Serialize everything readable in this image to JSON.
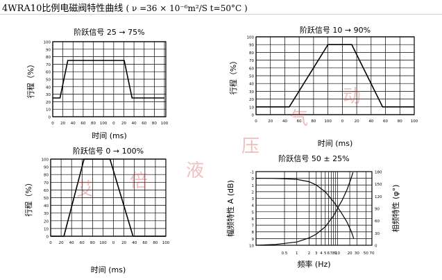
{
  "header": {
    "model": "4WRA10",
    "title": "比例电磁阀特性曲线",
    "conditions": "( ν =36 × 10⁻⁶m²/S  t=50°C )"
  },
  "watermark": [
    "艾",
    "倍",
    "液",
    "压",
    "气",
    "动"
  ],
  "colors": {
    "axis": "#000000",
    "grid": "#000000",
    "curve": "#000000",
    "watermark": "#d64646"
  },
  "chart_data": [
    {
      "id": "chart1",
      "type": "line",
      "title": "阶跃信号 25 → 75%",
      "xlabel": "时间  (ms)",
      "ylabel": "行程（%）",
      "ylim": [
        0,
        100
      ],
      "yticks": [
        0,
        10,
        20,
        30,
        40,
        50,
        60,
        70,
        80,
        90,
        100
      ],
      "xtick_labels": [
        "0",
        "20",
        "40",
        "60",
        "80",
        "100",
        "0",
        "20",
        "40",
        "60",
        "80",
        "100"
      ],
      "xlim": [
        0,
        200
      ],
      "grid": true,
      "series": [
        {
          "values": [
            [
              0,
              25
            ],
            [
              13,
              25
            ],
            [
              27,
              75
            ],
            [
              128,
              75
            ],
            [
              142,
              25
            ],
            [
              200,
              25
            ]
          ]
        }
      ]
    },
    {
      "id": "chart2",
      "type": "line",
      "title": "阶跃信号 10 → 90%",
      "xlabel": "时间  (ms)",
      "ylabel": "行程（%）",
      "ylim": [
        0,
        100
      ],
      "yticks": [
        0,
        10,
        20,
        30,
        40,
        50,
        60,
        70,
        80,
        90,
        100
      ],
      "xtick_labels": [
        "0",
        "20",
        "40",
        "60",
        "80",
        "100",
        "0",
        "20",
        "40",
        "60",
        "80",
        "100"
      ],
      "xlim": [
        0,
        200
      ],
      "grid": true,
      "series": [
        {
          "values": [
            [
              0,
              10
            ],
            [
              42,
              10
            ],
            [
              91,
              90
            ],
            [
              121,
              90
            ],
            [
              160,
              10
            ],
            [
              200,
              10
            ]
          ]
        }
      ]
    },
    {
      "id": "chart3",
      "type": "line",
      "title": "阶跃信号 0 → 100%",
      "xlabel": "时间  (ms)",
      "ylabel": "行程（%）",
      "ylim": [
        0,
        100
      ],
      "yticks": [
        0,
        10,
        20,
        30,
        40,
        50,
        60,
        70,
        80,
        90,
        100
      ],
      "xtick_labels": [
        "0",
        "20",
        "40",
        "60",
        "80",
        "100",
        "0",
        "20",
        "40",
        "60",
        "80",
        "100"
      ],
      "xlim": [
        0,
        200
      ],
      "grid": true,
      "series": [
        {
          "values": [
            [
              0,
              0
            ],
            [
              23,
              0
            ],
            [
              58,
              100
            ],
            [
              103,
              100
            ],
            [
              143,
              0
            ],
            [
              200,
              0
            ]
          ]
        }
      ]
    },
    {
      "id": "chart4",
      "type": "line",
      "title": "阶跃信号 50 ± 25%",
      "xlabel": "频率  (Hz)",
      "ylabel": "幅频特性   A (dB)",
      "ylabel2": "相频特性  (φ°)",
      "xscale": "log",
      "xlim": [
        0.1,
        70
      ],
      "xticks": [
        0.5,
        1,
        2,
        3,
        4,
        5,
        6,
        7,
        8,
        9,
        10,
        20,
        30,
        50,
        70
      ],
      "xtick_labels": [
        "0.5",
        "1",
        "2",
        "3",
        "4",
        "5",
        "6",
        "7",
        "8",
        "9",
        "10",
        "20",
        "30",
        "50",
        "70"
      ],
      "ylim": [
        10,
        -1
      ],
      "yticks": [
        -1,
        0,
        1,
        2,
        3,
        4,
        5,
        6,
        7,
        8,
        9,
        10
      ],
      "ytick_labels": [
        "-1",
        "0",
        "1",
        "2",
        "3",
        "4",
        "5",
        "6",
        "7",
        "8",
        "9",
        "10"
      ],
      "y2lim": [
        0,
        180
      ],
      "y2ticks": [
        0,
        30,
        60,
        90,
        120,
        150,
        180
      ],
      "grid": true,
      "series": [
        {
          "axis": "left",
          "values": [
            [
              0.1,
              0
            ],
            [
              0.3,
              0.02
            ],
            [
              1,
              0.15
            ],
            [
              2,
              0.5
            ],
            [
              3,
              1
            ],
            [
              5,
              2
            ],
            [
              8,
              3.5
            ],
            [
              12,
              5
            ],
            [
              17,
              6.5
            ],
            [
              22,
              8
            ],
            [
              25,
              9
            ]
          ]
        },
        {
          "axis": "right",
          "values": [
            [
              0.1,
              0
            ],
            [
              0.3,
              2
            ],
            [
              1,
              8
            ],
            [
              2,
              18
            ],
            [
              3,
              27
            ],
            [
              5,
              45
            ],
            [
              8,
              72
            ],
            [
              10,
              90
            ],
            [
              13,
              110
            ],
            [
              17,
              135
            ],
            [
              21,
              160
            ],
            [
              24,
              178
            ]
          ]
        }
      ]
    }
  ]
}
